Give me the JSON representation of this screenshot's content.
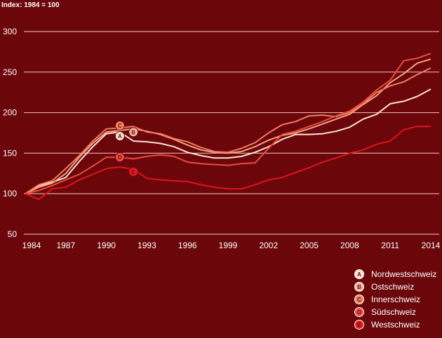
{
  "chart_data": {
    "type": "line",
    "ylabel": "Index: 1984 = 100",
    "ylim": [
      50,
      300
    ],
    "yticks": [
      "300",
      "250",
      "200",
      "150",
      "100",
      "50"
    ],
    "xticks": [
      "1984",
      "1987",
      "1990",
      "1993",
      "1996",
      "1999",
      "2002",
      "2005",
      "2008",
      "2011",
      "2014"
    ],
    "x": [
      1984,
      1985,
      1986,
      1987,
      1988,
      1989,
      1990,
      1991,
      1992,
      1993,
      1994,
      1995,
      1996,
      1997,
      1998,
      1999,
      2000,
      2001,
      2002,
      2003,
      2004,
      2005,
      2006,
      2007,
      2008,
      2009,
      2010,
      2011,
      2012,
      2013,
      2014
    ],
    "grid": "horizontal",
    "legend_position": "bottom-right",
    "series": [
      {
        "name": "Nordwestschweiz",
        "marker": "A",
        "color": "#fbe3d2",
        "marker_color": "#fbe3d2",
        "marker_x": 1991,
        "marker_y": 171,
        "values": [
          100,
          110,
          114,
          120,
          140,
          158,
          174,
          176,
          165,
          164,
          162,
          158,
          151,
          147,
          144,
          144,
          146,
          151,
          158,
          167,
          173,
          173,
          174,
          177,
          182,
          192,
          198,
          211,
          214,
          220,
          229
        ]
      },
      {
        "name": "Ostschweiz",
        "marker": "B",
        "color": "#f2a283",
        "marker_color": "#f7b9a0",
        "marker_x": 1992,
        "marker_y": 176,
        "values": [
          100,
          108,
          113,
          125,
          145,
          162,
          176,
          178,
          180,
          177,
          173,
          167,
          160,
          154,
          151,
          150,
          152,
          158,
          166,
          172,
          175,
          180,
          186,
          192,
          198,
          210,
          221,
          237,
          248,
          261,
          266
        ]
      },
      {
        "name": "Innerschweiz",
        "marker": "C",
        "color": "#f27a5e",
        "marker_color": "#f08565",
        "marker_x": 1991,
        "marker_y": 184,
        "values": [
          100,
          111,
          116,
          131,
          147,
          165,
          180,
          181,
          183,
          176,
          174,
          168,
          164,
          157,
          152,
          151,
          156,
          163,
          175,
          185,
          189,
          196,
          197,
          195,
          200,
          211,
          225,
          233,
          238,
          247,
          255
        ]
      },
      {
        "name": "Südschweiz",
        "marker": "D",
        "color": "#eb4c3c",
        "marker_color": "#ec5244",
        "marker_x": 1991,
        "marker_y": 145,
        "values": [
          100,
          104,
          110,
          117,
          124,
          134,
          145,
          145,
          143,
          146,
          148,
          146,
          139,
          137,
          136,
          135,
          137,
          138,
          156,
          173,
          177,
          183,
          189,
          196,
          202,
          213,
          228,
          240,
          264,
          267,
          273
        ]
      },
      {
        "name": "Westschweiz",
        "marker": "E",
        "color": "#e0141c",
        "marker_color": "#e51d21",
        "marker_x": 1992,
        "marker_y": 127,
        "values": [
          100,
          93,
          106,
          108,
          117,
          124,
          131,
          133,
          130,
          119,
          117,
          116,
          115,
          111,
          108,
          106,
          106,
          111,
          117,
          120,
          126,
          132,
          139,
          144,
          150,
          154,
          161,
          165,
          179,
          183,
          183
        ]
      }
    ]
  }
}
